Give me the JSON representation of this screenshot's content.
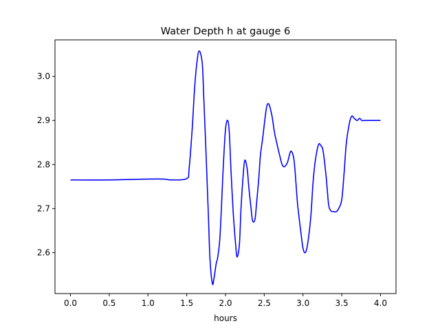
{
  "chart_data": {
    "type": "line",
    "title": "Water Depth h at gauge 6",
    "xlabel": "hours",
    "ylabel": "",
    "xlim": [
      -0.2,
      4.2
    ],
    "ylim": [
      2.507,
      3.083
    ],
    "x_ticks": [
      "0.0",
      "0.5",
      "1.0",
      "1.5",
      "2.0",
      "2.5",
      "3.0",
      "3.5",
      "4.0"
    ],
    "y_ticks": [
      "2.6",
      "2.7",
      "2.8",
      "2.9",
      "3.0"
    ],
    "grid": false,
    "legend": "none",
    "series": [
      {
        "color": "#0000ff",
        "x": [
          0.0,
          0.5,
          1.0,
          1.2,
          1.3,
          1.5,
          1.53,
          1.57,
          1.6,
          1.63,
          1.66,
          1.7,
          1.72,
          1.75,
          1.78,
          1.8,
          1.83,
          1.85,
          1.88,
          1.9,
          1.93,
          1.97,
          2.0,
          2.03,
          2.05,
          2.07,
          2.1,
          2.13,
          2.15,
          2.18,
          2.2,
          2.23,
          2.25,
          2.28,
          2.3,
          2.33,
          2.35,
          2.38,
          2.4,
          2.43,
          2.45,
          2.48,
          2.5,
          2.53,
          2.56,
          2.6,
          2.63,
          2.66,
          2.7,
          2.73,
          2.76,
          2.8,
          2.83,
          2.85,
          2.88,
          2.9,
          2.93,
          2.97,
          3.0,
          3.03,
          3.06,
          3.1,
          3.13,
          3.16,
          3.2,
          3.23,
          3.26,
          3.3,
          3.33,
          3.36,
          3.4,
          3.43,
          3.46,
          3.5,
          3.53,
          3.56,
          3.6,
          3.63,
          3.66,
          3.7,
          3.73,
          3.76,
          3.8,
          3.83,
          3.86,
          3.9,
          3.93,
          3.96,
          4.0
        ],
        "y": [
          2.765,
          2.765,
          2.767,
          2.767,
          2.765,
          2.768,
          2.79,
          2.88,
          2.97,
          3.03,
          3.058,
          3.03,
          2.95,
          2.82,
          2.68,
          2.585,
          2.53,
          2.54,
          2.575,
          2.59,
          2.64,
          2.79,
          2.88,
          2.9,
          2.87,
          2.79,
          2.69,
          2.62,
          2.59,
          2.62,
          2.7,
          2.78,
          2.81,
          2.79,
          2.75,
          2.7,
          2.672,
          2.675,
          2.71,
          2.77,
          2.82,
          2.86,
          2.89,
          2.93,
          2.937,
          2.91,
          2.875,
          2.85,
          2.82,
          2.8,
          2.795,
          2.805,
          2.825,
          2.83,
          2.815,
          2.78,
          2.71,
          2.65,
          2.61,
          2.6,
          2.62,
          2.68,
          2.76,
          2.81,
          2.845,
          2.843,
          2.83,
          2.77,
          2.71,
          2.695,
          2.693,
          2.693,
          2.7,
          2.72,
          2.78,
          2.85,
          2.895,
          2.91,
          2.905,
          2.9,
          2.905,
          2.9,
          2.9,
          2.9,
          2.9,
          2.9,
          2.9,
          2.9,
          2.9
        ]
      }
    ]
  }
}
